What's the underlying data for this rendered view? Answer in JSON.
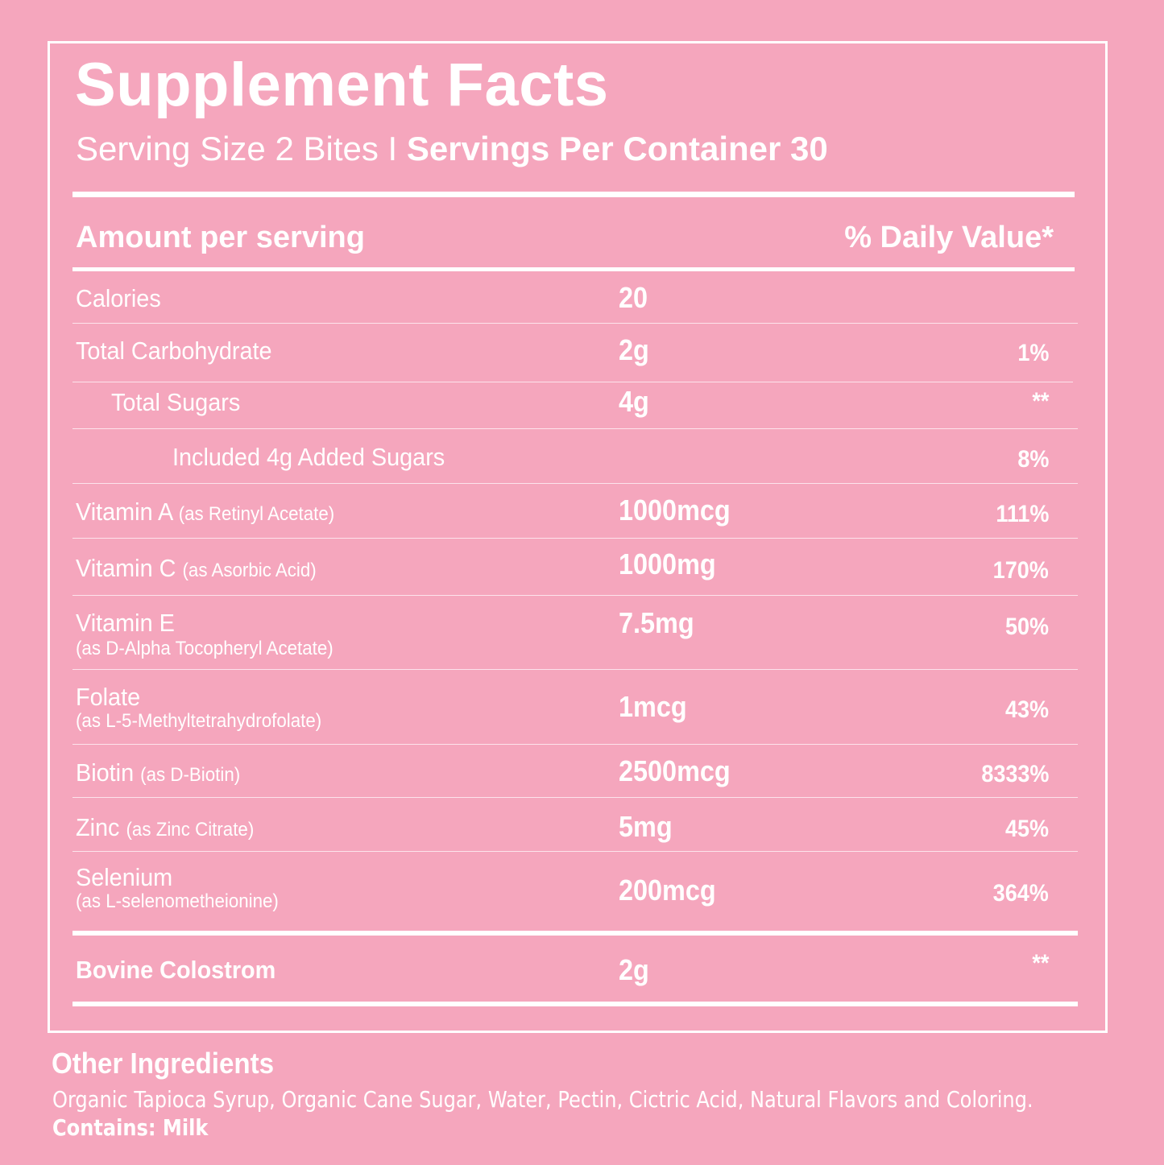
{
  "title": "Supplement Facts",
  "serving": {
    "size": "Serving Size 2 Bites",
    "separator": "I",
    "per_container": "Servings Per Container 30"
  },
  "header": {
    "amount": "Amount per serving",
    "daily_value": "% Daily Value*"
  },
  "rows": [
    {
      "label": "Calories",
      "note": "",
      "amount": "20",
      "dv": ""
    },
    {
      "label": "Total Carbohydrate",
      "note": "",
      "amount": "2g",
      "dv": "1%"
    },
    {
      "label": "Total Sugars",
      "note": "",
      "amount": "4g",
      "dv": "**"
    },
    {
      "label": "Included 4g Added Sugars",
      "note": "",
      "amount": "",
      "dv": "8%"
    },
    {
      "label": "Vitamin A",
      "note": "(as Retinyl Acetate)",
      "amount": "1000mcg",
      "dv": "111%"
    },
    {
      "label": "Vitamin C",
      "note": "(as Asorbic Acid)",
      "amount": "1000mg",
      "dv": "170%"
    },
    {
      "label": "Vitamin E",
      "note": "(as D-Alpha Tocopheryl Acetate)",
      "amount": "7.5mg",
      "dv": "50%"
    },
    {
      "label": "Folate",
      "note": "(as L-5-Methyltetrahydrofolate)",
      "amount": "1mcg",
      "dv": "43%"
    },
    {
      "label": "Biotin",
      "note": "(as D-Biotin)",
      "amount": "2500mcg",
      "dv": "8333%"
    },
    {
      "label": "Zinc",
      "note": "(as Zinc Citrate)",
      "amount": "5mg",
      "dv": "45%"
    },
    {
      "label": "Selenium",
      "note": "(as L-selenometheionine)",
      "amount": "200mcg",
      "dv": "364%"
    }
  ],
  "colostrum": {
    "label": "Bovine Colostrom",
    "amount": "2g",
    "dv": "**"
  },
  "other": {
    "heading": "Other Ingredients",
    "text": "Organic Tapioca Syrup, Organic Cane Sugar, Water, Pectin, Cictric Acid, Natural Flavors and Coloring.",
    "contains": "Contains: Milk"
  },
  "colors": {
    "background": "#f5a6bd",
    "text": "#ffffff"
  }
}
